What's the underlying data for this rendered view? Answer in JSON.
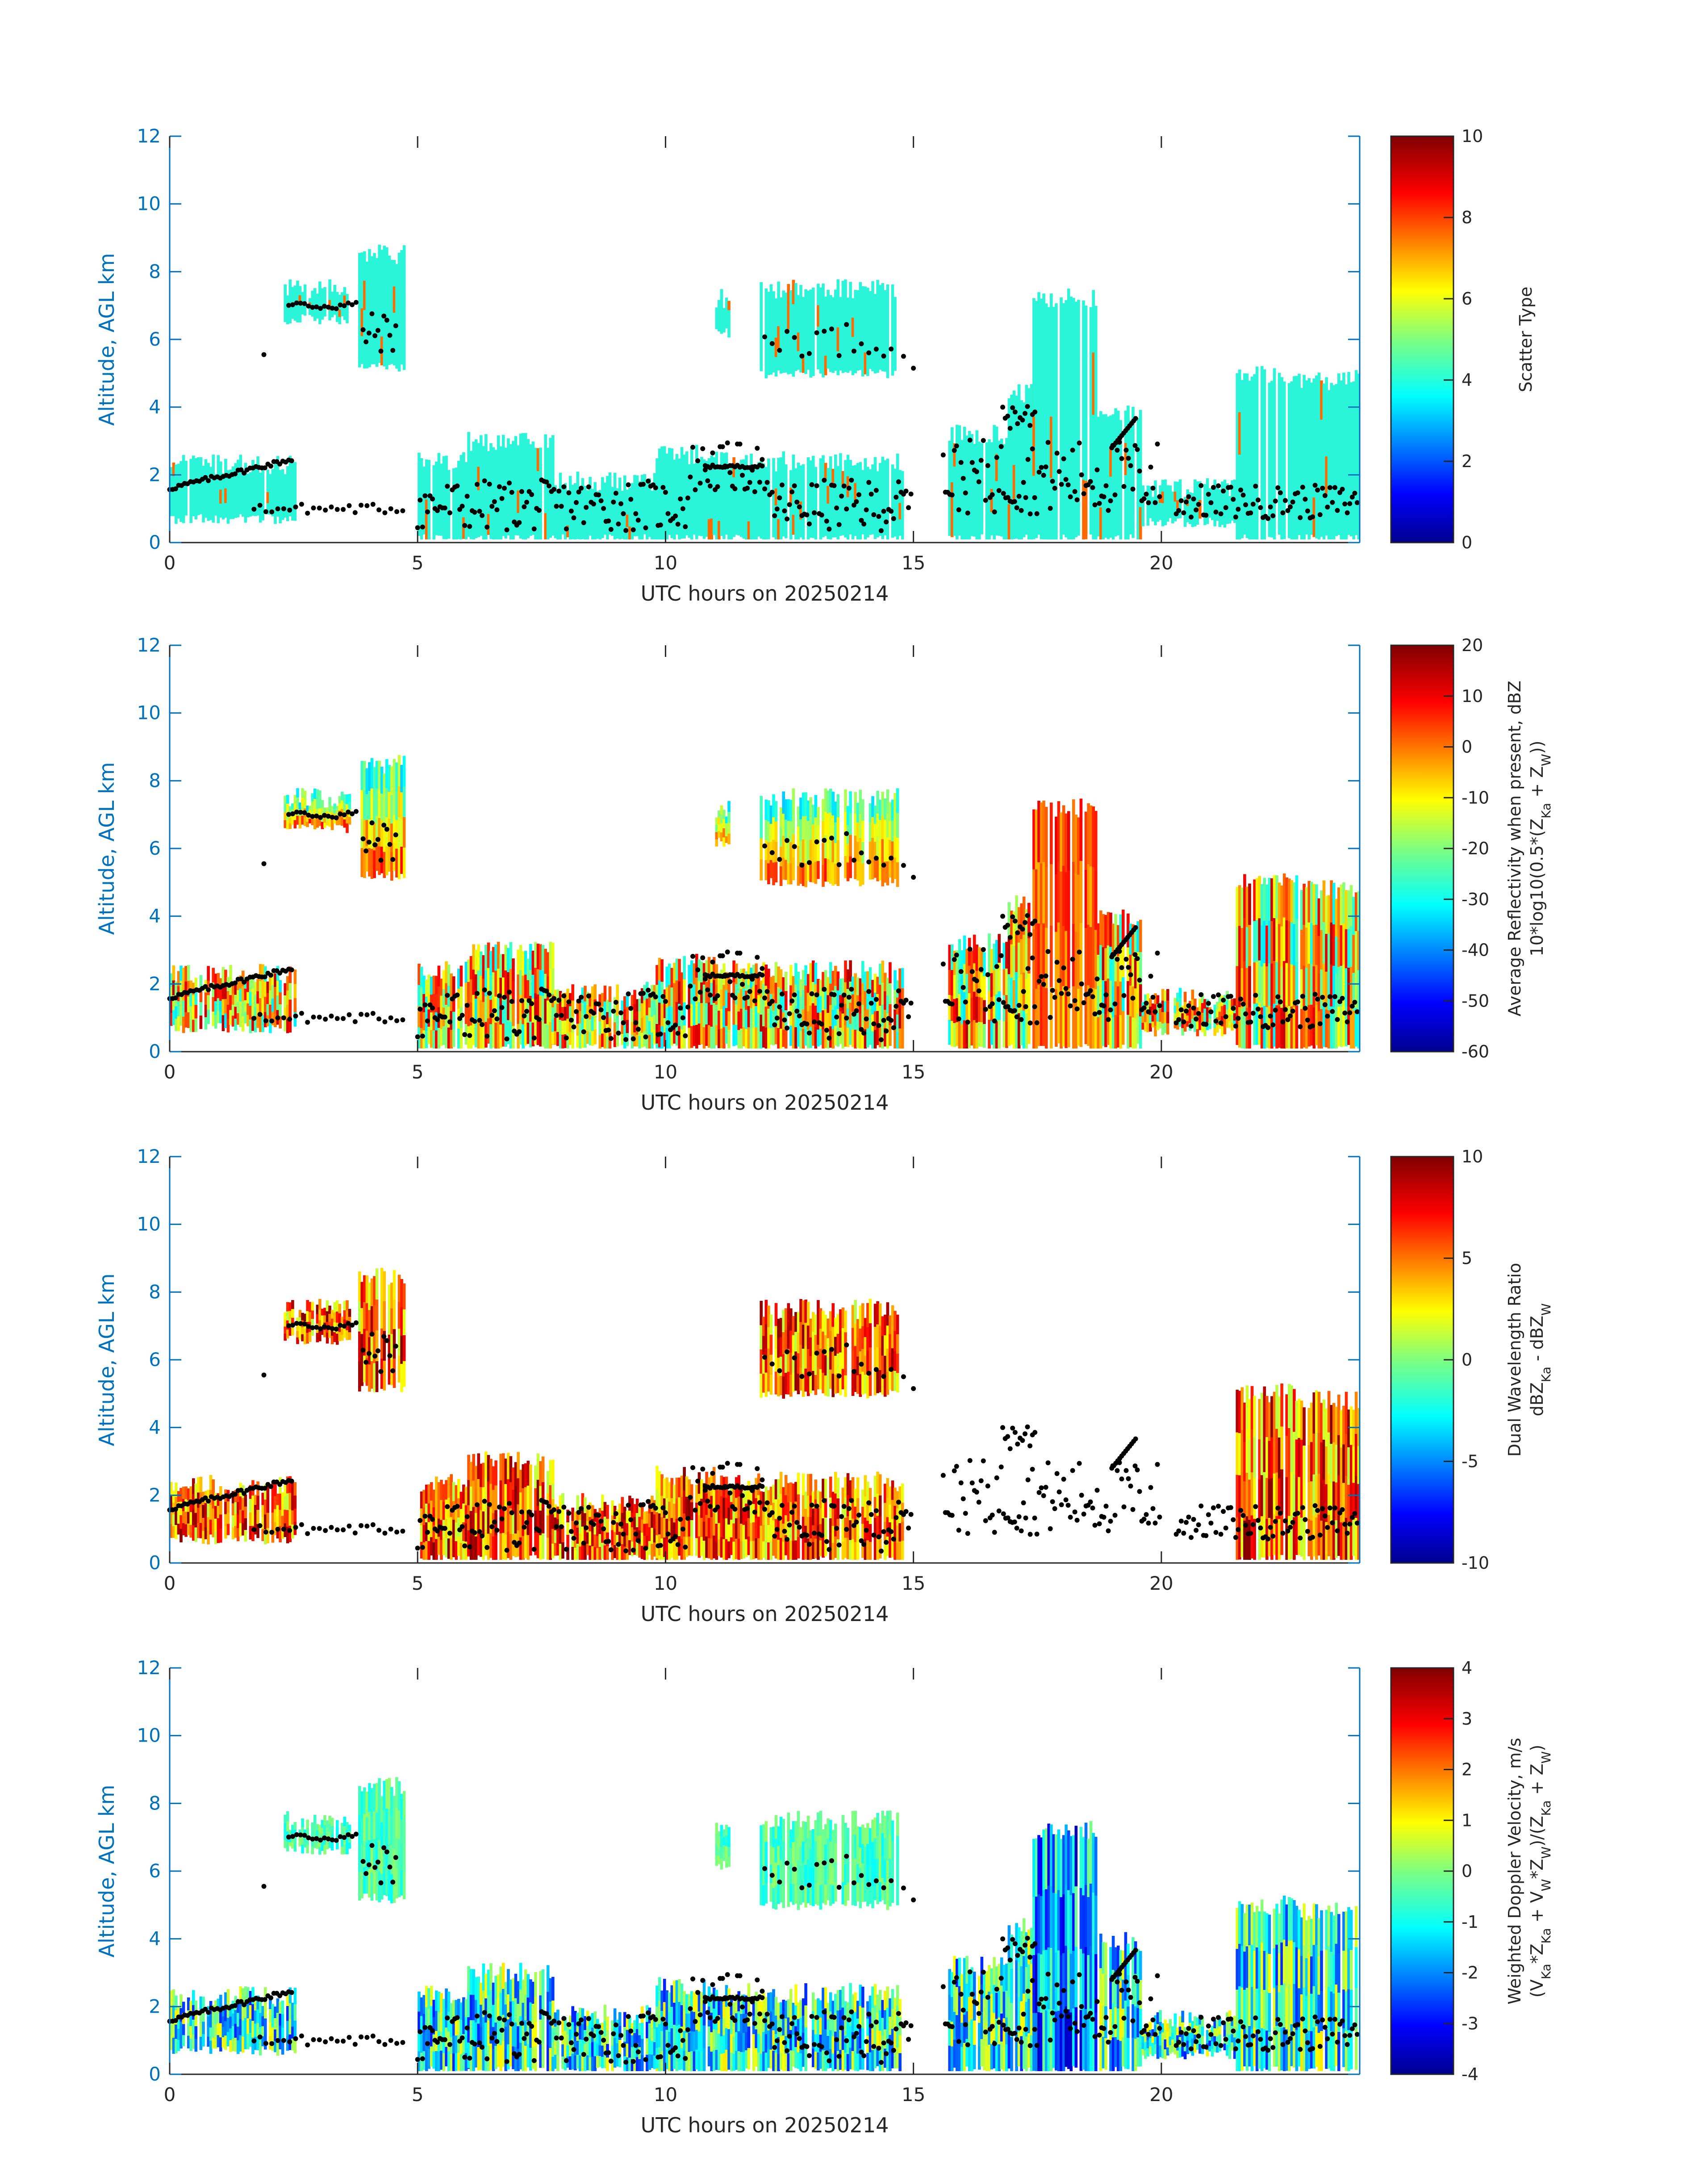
{
  "colors": {
    "axis_blue": "#0072bd",
    "text_dark": "#262626",
    "cloud_cyan": "#2bf5d8",
    "mode_markers": "#000000"
  },
  "shared": {
    "xlabel": "UTC hours on 20250214",
    "ylabel": "Altitude, AGL km",
    "xlim": [
      0,
      24
    ],
    "ylim": [
      0,
      12
    ],
    "xticks": [
      "0",
      "5",
      "10",
      "15",
      "20"
    ],
    "yticks": [
      "0",
      "2",
      "4",
      "6",
      "8",
      "10",
      "12"
    ]
  },
  "chart_data": [
    {
      "type": "heatmap",
      "panel": 1,
      "xlabel": "UTC hours on 20250214",
      "ylabel": "Altitude, AGL km",
      "xlim": [
        0,
        24
      ],
      "ylim": [
        0,
        12
      ],
      "colormap": "jet",
      "colorbar": {
        "label_lines": [
          "Scatter Type"
        ],
        "clim": [
          0,
          10
        ],
        "ticks": [
          "0",
          "2",
          "4",
          "6",
          "8",
          "10"
        ]
      }
    },
    {
      "type": "heatmap",
      "panel": 2,
      "xlabel": "UTC hours on 20250214",
      "ylabel": "Altitude, AGL km",
      "xlim": [
        0,
        24
      ],
      "ylim": [
        0,
        12
      ],
      "colormap": "jet",
      "colorbar": {
        "label_lines": [
          "Average Reflectivity when present, dBZ",
          "10*log10(0.5*(Z_Ka + Z_W))"
        ],
        "clim": [
          -60,
          20
        ],
        "ticks": [
          "-60",
          "-50",
          "-40",
          "-30",
          "-20",
          "-10",
          "0",
          "10",
          "20"
        ]
      }
    },
    {
      "type": "heatmap",
      "panel": 3,
      "xlabel": "UTC hours on 20250214",
      "ylabel": "Altitude, AGL km",
      "xlim": [
        0,
        24
      ],
      "ylim": [
        0,
        12
      ],
      "colormap": "jet",
      "colorbar": {
        "label_lines": [
          "Dual Wavelength Ratio",
          "dBZ_Ka - dBZ_W"
        ],
        "clim": [
          -10,
          10
        ],
        "ticks": [
          "-10",
          "-5",
          "0",
          "5",
          "10"
        ]
      }
    },
    {
      "type": "heatmap",
      "panel": 4,
      "xlabel": "UTC hours on 20250214",
      "ylabel": "Altitude, AGL km",
      "xlim": [
        0,
        24
      ],
      "ylim": [
        0,
        12
      ],
      "colormap": "jet",
      "colorbar": {
        "label_lines": [
          "Weighted Doppler Velocity, m/s",
          "(V_Ka*Z_Ka + V_W*Z_W)/(Z_Ka + Z_W)"
        ],
        "clim": [
          -4,
          4
        ],
        "ticks": [
          "-4",
          "-3",
          "-2",
          "-1",
          "0",
          "1",
          "2",
          "3",
          "4"
        ]
      }
    }
  ]
}
